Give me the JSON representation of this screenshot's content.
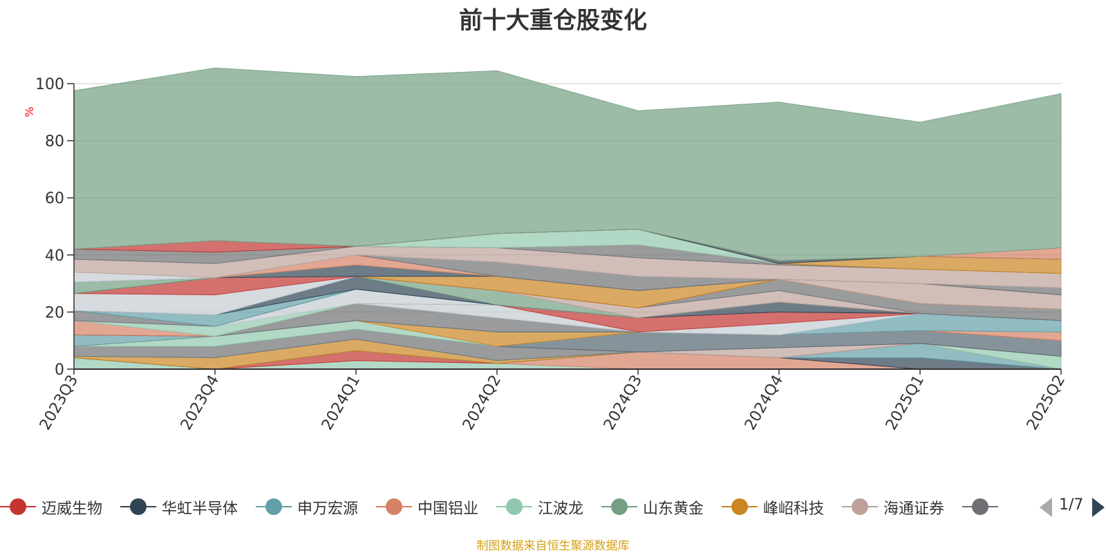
{
  "title": "前十大重仓股变化",
  "source": "制图数据来自恒生聚源数据库",
  "pager": "1/7",
  "legend": [
    {
      "name": "迈威生物",
      "color": "#c23531"
    },
    {
      "name": "华虹半导体",
      "color": "#2f4554"
    },
    {
      "name": "申万宏源",
      "color": "#61a0a8"
    },
    {
      "name": "中国铝业",
      "color": "#d48265"
    },
    {
      "name": "江波龙",
      "color": "#91c7ae"
    },
    {
      "name": "山东黄金",
      "color": "#749f83"
    },
    {
      "name": "峰岹科技",
      "color": "#ca8622"
    },
    {
      "name": "海通证券",
      "color": "#bda29a"
    },
    {
      "name": "",
      "color": "#6e7074"
    }
  ],
  "chart_data": {
    "type": "area",
    "ylabel": "%",
    "ylim": [
      0,
      100
    ],
    "yticks": [
      0,
      20,
      40,
      60,
      80,
      100
    ],
    "categories": [
      "2023Q3",
      "2023Q4",
      "2024Q1",
      "2024Q2",
      "2024Q3",
      "2024Q4",
      "2025Q1",
      "2025Q2"
    ],
    "grid": true,
    "stacked": true,
    "series": [
      {
        "color": "#91c7ae",
        "values": [
          4,
          0,
          3,
          2,
          0,
          0,
          0,
          0
        ]
      },
      {
        "color": "#d48265",
        "values": [
          0,
          0,
          0,
          0,
          6,
          4,
          0,
          0
        ]
      },
      {
        "color": "#c23531",
        "values": [
          0,
          0,
          3.5,
          0,
          0,
          0,
          0,
          0
        ]
      },
      {
        "color": "#2f4554",
        "values": [
          0,
          0,
          0,
          0,
          0,
          0,
          4,
          0
        ]
      },
      {
        "color": "#61a0a8",
        "values": [
          0,
          0,
          0,
          0,
          0,
          0,
          5,
          0
        ]
      },
      {
        "color": "#ca8622",
        "values": [
          0.5,
          4,
          4,
          1,
          0,
          0,
          0,
          0
        ]
      },
      {
        "color": "#91c7ae",
        "values": [
          0,
          0,
          0,
          0,
          0,
          0,
          0,
          4.5
        ]
      },
      {
        "color": "#6e7074",
        "values": [
          3.5,
          4,
          3.5,
          5,
          0,
          0,
          0,
          0
        ]
      },
      {
        "color": "#bda29a",
        "values": [
          0,
          0,
          0,
          0,
          0,
          3.5,
          0,
          0
        ]
      },
      {
        "color": "#546570",
        "values": [
          0,
          0,
          0,
          0,
          7,
          4.5,
          4.5,
          5.5
        ]
      },
      {
        "color": "#91c7ae",
        "values": [
          0,
          3.5,
          3,
          0,
          0,
          0,
          0,
          0
        ]
      },
      {
        "color": "#ca8622",
        "values": [
          0,
          0,
          0,
          5,
          0,
          0,
          0,
          0
        ]
      },
      {
        "color": "#61a0a8",
        "values": [
          4,
          0,
          0,
          0,
          0,
          0,
          0,
          0
        ]
      },
      {
        "color": "#6e7074",
        "values": [
          0,
          0,
          6,
          5,
          0,
          0,
          0,
          0
        ]
      },
      {
        "color": "#d48265",
        "values": [
          0,
          0,
          0,
          0,
          0,
          0,
          0,
          3
        ]
      },
      {
        "color": "#61a0a8",
        "values": [
          0,
          0,
          0,
          0,
          0,
          0,
          6,
          4
        ]
      },
      {
        "color": "#c4ccd3",
        "values": [
          0,
          0,
          0,
          4.5,
          0,
          4,
          0,
          0
        ]
      },
      {
        "color": "#c23531",
        "values": [
          0,
          0,
          0,
          0,
          5,
          4,
          0,
          0
        ]
      },
      {
        "color": "#2f4554",
        "values": [
          0,
          0,
          0,
          0,
          0,
          3.5,
          0,
          0
        ]
      },
      {
        "color": "#d48265",
        "values": [
          5,
          0,
          0,
          0,
          0,
          0,
          0,
          0
        ]
      },
      {
        "color": "#91c7ae",
        "values": [
          0,
          3.5,
          0,
          0,
          0,
          0,
          0,
          0
        ]
      },
      {
        "color": "#c4ccd3",
        "values": [
          0,
          0,
          5,
          0,
          0,
          0,
          0,
          0
        ]
      },
      {
        "color": "#6e7074",
        "values": [
          3.5,
          0,
          0,
          0,
          0,
          0,
          0,
          0
        ]
      },
      {
        "color": "#61a0a8",
        "values": [
          0,
          4,
          0,
          0,
          0,
          0,
          0,
          0
        ]
      },
      {
        "color": "#2f4554",
        "values": [
          0,
          0,
          4.5,
          0,
          0,
          0,
          0,
          0
        ]
      },
      {
        "color": "#749f83",
        "values": [
          0,
          0,
          0,
          5,
          0,
          0,
          0,
          0
        ]
      },
      {
        "color": "#bda29a",
        "values": [
          0,
          0,
          0,
          0,
          3.5,
          4,
          0,
          0
        ]
      },
      {
        "color": "#6e7074",
        "values": [
          0,
          0,
          0,
          0,
          0,
          4,
          3.5,
          4
        ]
      },
      {
        "color": "#c4ccd3",
        "values": [
          6,
          7,
          0,
          0,
          0,
          0,
          0,
          0
        ]
      },
      {
        "color": "#c23531",
        "values": [
          0,
          6,
          0,
          0,
          0,
          0,
          0,
          0
        ]
      },
      {
        "color": "#ca8622",
        "values": [
          0,
          0,
          0,
          5,
          6,
          0,
          0,
          0
        ]
      },
      {
        "color": "#bda29a",
        "values": [
          0,
          0,
          0,
          0,
          0,
          0,
          7,
          5
        ]
      },
      {
        "color": "#2f4554",
        "values": [
          0,
          0,
          4,
          0,
          0,
          0,
          0,
          0
        ]
      },
      {
        "color": "#749f83",
        "values": [
          4,
          0,
          0,
          0,
          0,
          0,
          0,
          0
        ]
      },
      {
        "color": "#d48265",
        "values": [
          0,
          0,
          3.5,
          0,
          0,
          0,
          0,
          0
        ]
      },
      {
        "color": "#6e7074",
        "values": [
          0,
          0,
          0,
          5,
          5,
          0,
          0,
          2.5
        ]
      },
      {
        "color": "#61a0a8",
        "values": [
          0,
          0,
          0,
          0,
          0,
          0,
          0,
          0
        ]
      },
      {
        "color": "#c4ccd3",
        "values": [
          3.5,
          0,
          0,
          0,
          0,
          0,
          0,
          0
        ]
      },
      {
        "color": "#bda29a",
        "values": [
          4.5,
          5,
          3,
          5,
          6.5,
          5,
          5,
          5
        ]
      },
      {
        "color": "#6e7074",
        "values": [
          3.5,
          4,
          0,
          0,
          4.5,
          0.5,
          0,
          0
        ]
      },
      {
        "color": "#c23531",
        "values": [
          0,
          4,
          0,
          0,
          0,
          0,
          0,
          0
        ]
      },
      {
        "color": "#91c7ae",
        "values": [
          0,
          0,
          0,
          5,
          5.5,
          0,
          0,
          0
        ]
      },
      {
        "color": "#ca8622",
        "values": [
          0,
          0,
          0,
          0,
          0,
          0,
          4.5,
          5
        ]
      },
      {
        "color": "#2f4554",
        "values": [
          0,
          0,
          0,
          0,
          0,
          1,
          0,
          0
        ]
      },
      {
        "color": "#d48265",
        "values": [
          0,
          0,
          0,
          0,
          0,
          0,
          0,
          4
        ]
      },
      {
        "color": "#749f83",
        "values": [
          55.5,
          60.5,
          59.5,
          57,
          41.5,
          55.5,
          47,
          54
        ]
      }
    ]
  }
}
